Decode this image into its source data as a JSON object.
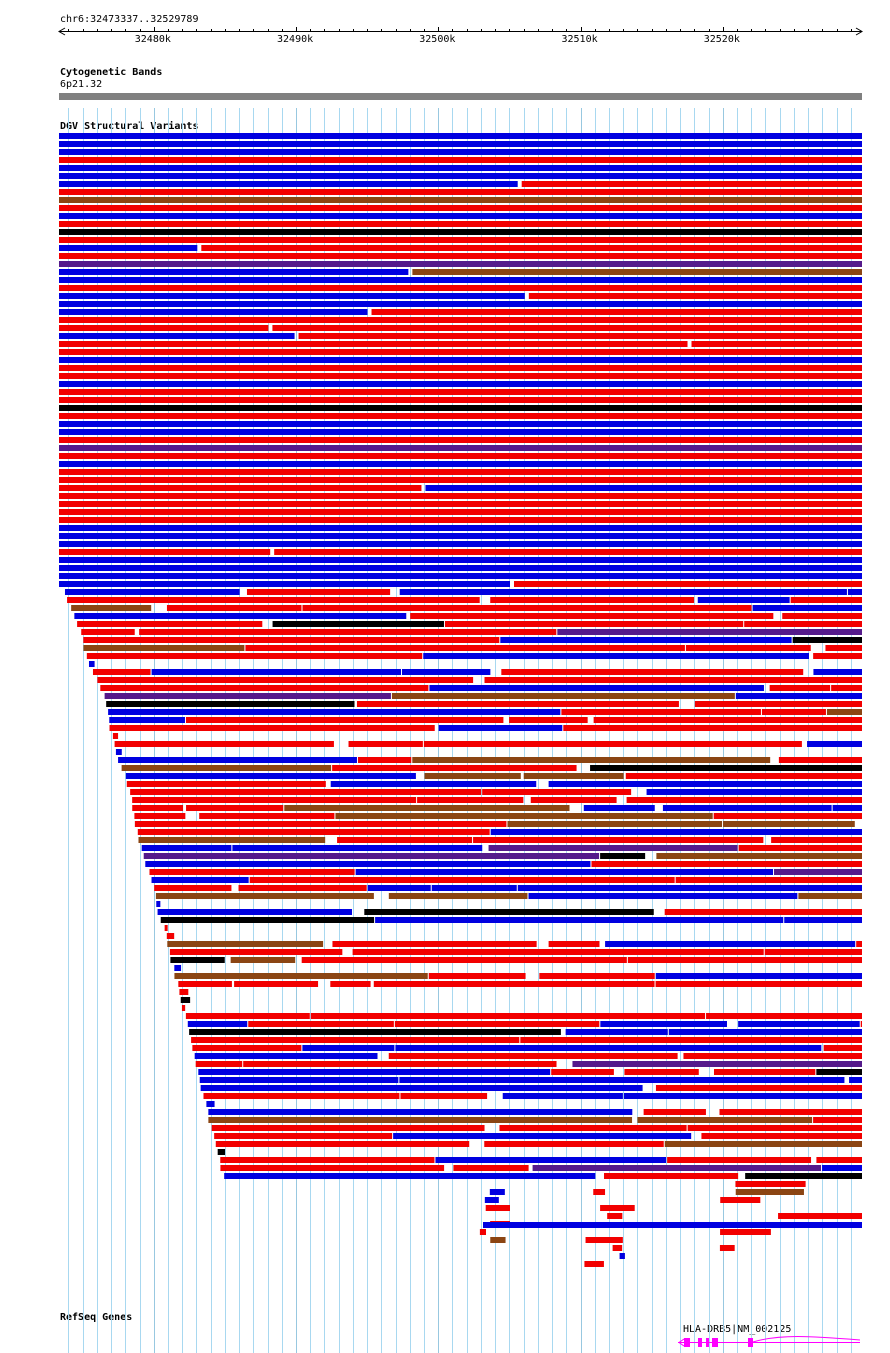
{
  "locus": "chr6:32473337..32529789",
  "ruler": {
    "start": 32473337,
    "end": 32529789,
    "ticks": [
      {
        "pos": 32480000,
        "label": "32480k"
      },
      {
        "pos": 32490000,
        "label": "32490k"
      },
      {
        "pos": 32500000,
        "label": "32500k"
      },
      {
        "pos": 32510000,
        "label": "32510k"
      },
      {
        "pos": 32520000,
        "label": "32520k"
      }
    ]
  },
  "tracks": {
    "cytoband": {
      "title": "Cytogenetic Bands",
      "band": "6p21.32",
      "color": "#808080"
    },
    "dgv": {
      "title": "DGV Structural Variants"
    },
    "refseq": {
      "title": "RefSeq Genes",
      "gene_label": "HLA-DRB5|NM_002125",
      "gene_color": "#ff00ff"
    }
  },
  "colors": {
    "red": "#f20000",
    "blue": "#0000e0",
    "black": "#000000",
    "brown": "#8b4513",
    "purple": "#551a8b",
    "grid": "#a8d8f0"
  }
}
